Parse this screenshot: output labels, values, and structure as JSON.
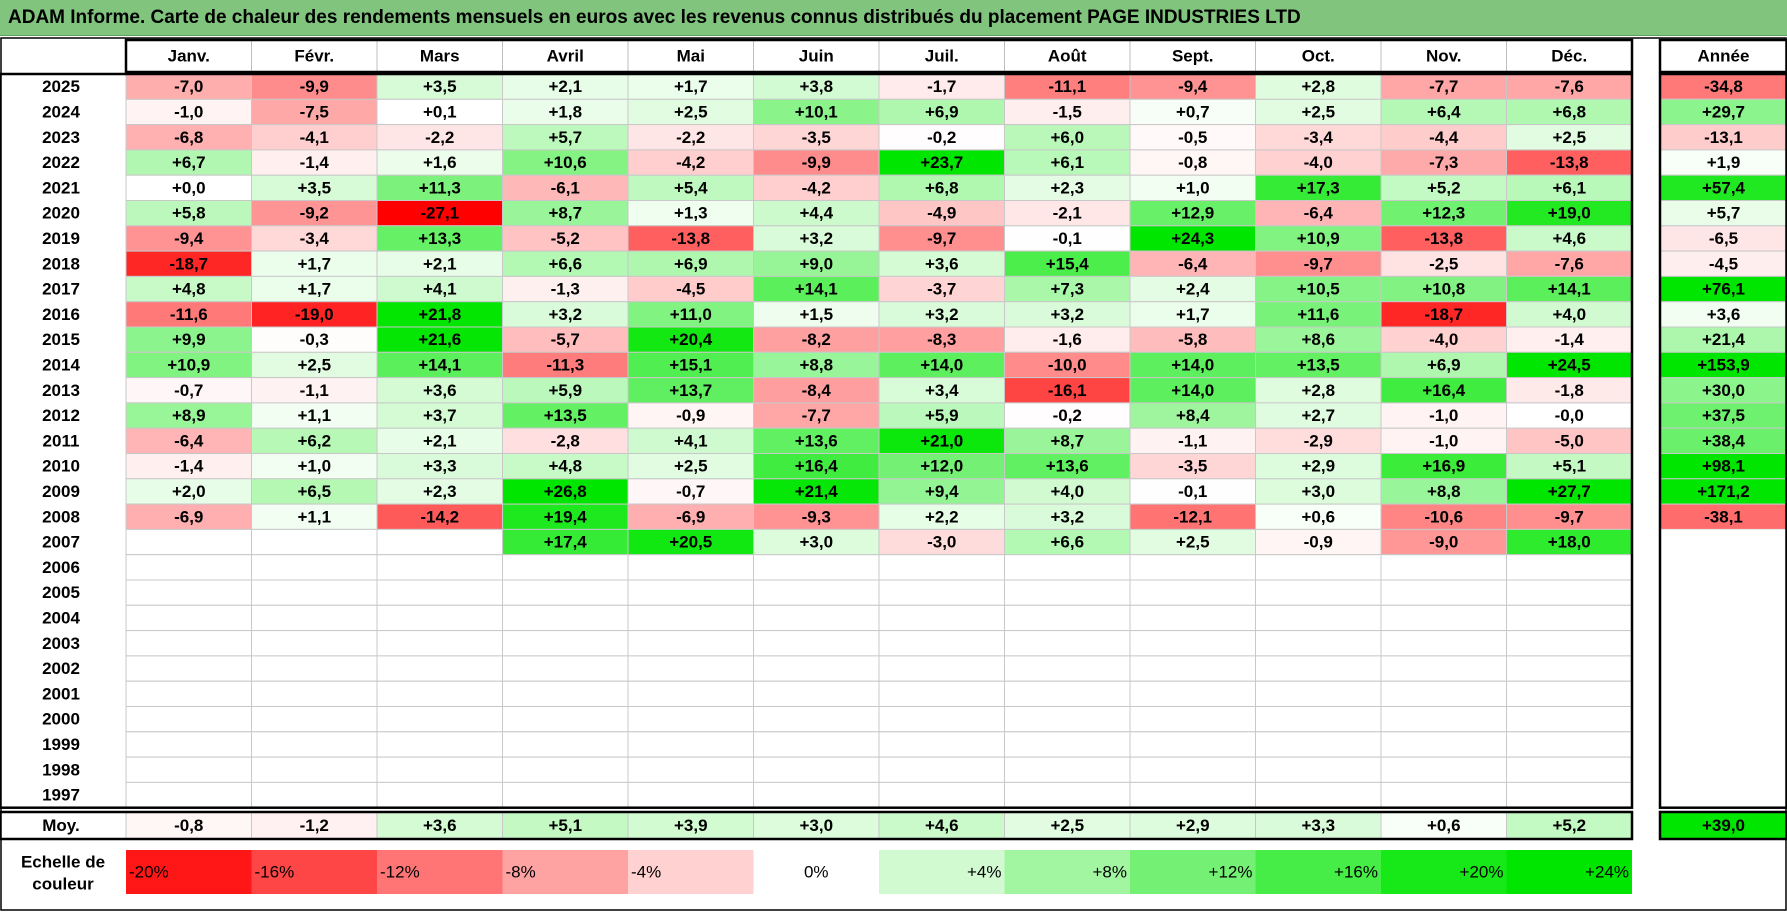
{
  "title": "ADAM Informe. Carte de chaleur des rendements mensuels en euros avec les revenus connus distribués du placement PAGE INDUSTRIES LTD",
  "colors": {
    "negative_max": "#ff0000",
    "neutral": "#ffffff",
    "positive_max": "#00e600",
    "title_bg": "#80c47d"
  },
  "chart_data": {
    "type": "heatmap",
    "title": "ADAM Informe. Carte de chaleur des rendements mensuels en euros avec les revenus connus distribués du placement PAGE INDUSTRIES LTD",
    "months": [
      "Janv.",
      "Févr.",
      "Mars",
      "Avril",
      "Mai",
      "Juin",
      "Juil.",
      "Août",
      "Sept.",
      "Oct.",
      "Nov.",
      "Déc."
    ],
    "year_header": "Année",
    "rows": [
      {
        "year": "2025",
        "m": [
          "-7,0",
          "-9,9",
          "+3,5",
          "+2,1",
          "+1,7",
          "+3,8",
          "-1,7",
          "-11,1",
          "-9,4",
          "+2,8",
          "-7,7",
          "-7,6"
        ],
        "y": "-34,8"
      },
      {
        "year": "2024",
        "m": [
          "-1,0",
          "-7,5",
          "+0,1",
          "+1,8",
          "+2,5",
          "+10,1",
          "+6,9",
          "-1,5",
          "+0,7",
          "+2,5",
          "+6,4",
          "+6,8"
        ],
        "y": "+29,7"
      },
      {
        "year": "2023",
        "m": [
          "-6,8",
          "-4,1",
          "-2,2",
          "+5,7",
          "-2,2",
          "-3,5",
          "-0,2",
          "+6,0",
          "-0,5",
          "-3,4",
          "-4,4",
          "+2,5"
        ],
        "y": "-13,1"
      },
      {
        "year": "2022",
        "m": [
          "+6,7",
          "-1,4",
          "+1,6",
          "+10,6",
          "-4,2",
          "-9,9",
          "+23,7",
          "+6,1",
          "-0,8",
          "-4,0",
          "-7,3",
          "-13,8"
        ],
        "y": "+1,9"
      },
      {
        "year": "2021",
        "m": [
          "+0,0",
          "+3,5",
          "+11,3",
          "-6,1",
          "+5,4",
          "-4,2",
          "+6,8",
          "+2,3",
          "+1,0",
          "+17,3",
          "+5,2",
          "+6,1"
        ],
        "y": "+57,4"
      },
      {
        "year": "2020",
        "m": [
          "+5,8",
          "-9,2",
          "-27,1",
          "+8,7",
          "+1,3",
          "+4,4",
          "-4,9",
          "-2,1",
          "+12,9",
          "-6,4",
          "+12,3",
          "+19,0"
        ],
        "y": "+5,7"
      },
      {
        "year": "2019",
        "m": [
          "-9,4",
          "-3,4",
          "+13,3",
          "-5,2",
          "-13,8",
          "+3,2",
          "-9,7",
          "-0,1",
          "+24,3",
          "+10,9",
          "-13,8",
          "+4,6"
        ],
        "y": "-6,5"
      },
      {
        "year": "2018",
        "m": [
          "-18,7",
          "+1,7",
          "+2,1",
          "+6,6",
          "+6,9",
          "+9,0",
          "+3,6",
          "+15,4",
          "-6,4",
          "-9,7",
          "-2,5",
          "-7,6"
        ],
        "y": "-4,5"
      },
      {
        "year": "2017",
        "m": [
          "+4,8",
          "+1,7",
          "+4,1",
          "-1,3",
          "-4,5",
          "+14,1",
          "-3,7",
          "+7,3",
          "+2,4",
          "+10,5",
          "+10,8",
          "+14,1"
        ],
        "y": "+76,1"
      },
      {
        "year": "2016",
        "m": [
          "-11,6",
          "-19,0",
          "+21,8",
          "+3,2",
          "+11,0",
          "+1,5",
          "+3,2",
          "+3,2",
          "+1,7",
          "+11,6",
          "-18,7",
          "+4,0"
        ],
        "y": "+3,6"
      },
      {
        "year": "2015",
        "m": [
          "+9,9",
          "-0,3",
          "+21,6",
          "-5,7",
          "+20,4",
          "-8,2",
          "-8,3",
          "-1,6",
          "-5,8",
          "+8,6",
          "-4,0",
          "-1,4"
        ],
        "y": "+21,4"
      },
      {
        "year": "2014",
        "m": [
          "+10,9",
          "+2,5",
          "+14,1",
          "-11,3",
          "+15,1",
          "+8,8",
          "+14,0",
          "-10,0",
          "+14,0",
          "+13,5",
          "+6,9",
          "+24,5"
        ],
        "y": "+153,9"
      },
      {
        "year": "2013",
        "m": [
          "-0,7",
          "-1,1",
          "+3,6",
          "+5,9",
          "+13,7",
          "-8,4",
          "+3,4",
          "-16,1",
          "+14,0",
          "+2,8",
          "+16,4",
          "-1,8"
        ],
        "y": "+30,0"
      },
      {
        "year": "2012",
        "m": [
          "+8,9",
          "+1,1",
          "+3,7",
          "+13,5",
          "-0,9",
          "-7,7",
          "+5,9",
          "-0,2",
          "+8,4",
          "+2,7",
          "-1,0",
          "-0,0"
        ],
        "y": "+37,5"
      },
      {
        "year": "2011",
        "m": [
          "-6,4",
          "+6,2",
          "+2,1",
          "-2,8",
          "+4,1",
          "+13,6",
          "+21,0",
          "+8,7",
          "-1,1",
          "-2,9",
          "-1,0",
          "-5,0"
        ],
        "y": "+38,4"
      },
      {
        "year": "2010",
        "m": [
          "-1,4",
          "+1,0",
          "+3,3",
          "+4,8",
          "+2,5",
          "+16,4",
          "+12,0",
          "+13,6",
          "-3,5",
          "+2,9",
          "+16,9",
          "+5,1"
        ],
        "y": "+98,1"
      },
      {
        "year": "2009",
        "m": [
          "+2,0",
          "+6,5",
          "+2,3",
          "+26,8",
          "-0,7",
          "+21,4",
          "+9,4",
          "+4,0",
          "-0,1",
          "+3,0",
          "+8,8",
          "+27,7"
        ],
        "y": "+171,2"
      },
      {
        "year": "2008",
        "m": [
          "-6,9",
          "+1,1",
          "-14,2",
          "+19,4",
          "-6,9",
          "-9,3",
          "+2,2",
          "+3,2",
          "-12,1",
          "+0,6",
          "-10,6",
          "-9,7"
        ],
        "y": "-38,1"
      },
      {
        "year": "2007",
        "m": [
          "",
          "",
          "",
          "+17,4",
          "+20,5",
          "+3,0",
          "-3,0",
          "+6,6",
          "+2,5",
          "-0,9",
          "-9,0",
          "+18,0"
        ],
        "y": ""
      },
      {
        "year": "2006",
        "m": [
          "",
          "",
          "",
          "",
          "",
          "",
          "",
          "",
          "",
          "",
          "",
          ""
        ],
        "y": ""
      },
      {
        "year": "2005",
        "m": [
          "",
          "",
          "",
          "",
          "",
          "",
          "",
          "",
          "",
          "",
          "",
          ""
        ],
        "y": ""
      },
      {
        "year": "2004",
        "m": [
          "",
          "",
          "",
          "",
          "",
          "",
          "",
          "",
          "",
          "",
          "",
          ""
        ],
        "y": ""
      },
      {
        "year": "2003",
        "m": [
          "",
          "",
          "",
          "",
          "",
          "",
          "",
          "",
          "",
          "",
          "",
          ""
        ],
        "y": ""
      },
      {
        "year": "2002",
        "m": [
          "",
          "",
          "",
          "",
          "",
          "",
          "",
          "",
          "",
          "",
          "",
          ""
        ],
        "y": ""
      },
      {
        "year": "2001",
        "m": [
          "",
          "",
          "",
          "",
          "",
          "",
          "",
          "",
          "",
          "",
          "",
          ""
        ],
        "y": ""
      },
      {
        "year": "2000",
        "m": [
          "",
          "",
          "",
          "",
          "",
          "",
          "",
          "",
          "",
          "",
          "",
          ""
        ],
        "y": ""
      },
      {
        "year": "1999",
        "m": [
          "",
          "",
          "",
          "",
          "",
          "",
          "",
          "",
          "",
          "",
          "",
          ""
        ],
        "y": ""
      },
      {
        "year": "1998",
        "m": [
          "",
          "",
          "",
          "",
          "",
          "",
          "",
          "",
          "",
          "",
          "",
          ""
        ],
        "y": ""
      },
      {
        "year": "1997",
        "m": [
          "",
          "",
          "",
          "",
          "",
          "",
          "",
          "",
          "",
          "",
          "",
          ""
        ],
        "y": ""
      }
    ],
    "average": {
      "label": "Moy.",
      "m": [
        "-0,8",
        "-1,2",
        "+3,6",
        "+5,1",
        "+3,9",
        "+3,0",
        "+4,6",
        "+2,5",
        "+2,9",
        "+3,3",
        "+0,6",
        "+5,2"
      ],
      "y": "+39,0"
    },
    "scale": {
      "label_line1": "Echelle de",
      "label_line2": "couleur",
      "steps": [
        {
          "label": "-20%",
          "value": -20
        },
        {
          "label": "-16%",
          "value": -16
        },
        {
          "label": "-12%",
          "value": -12
        },
        {
          "label": "-8%",
          "value": -8
        },
        {
          "label": "-4%",
          "value": -4
        },
        {
          "label": "0%",
          "value": 0
        },
        {
          "label": "+4%",
          "value": 4
        },
        {
          "label": "+8%",
          "value": 8
        },
        {
          "label": "+12%",
          "value": 12
        },
        {
          "label": "+16%",
          "value": 16
        },
        {
          "label": "+20%",
          "value": 20
        },
        {
          "label": "+24%",
          "value": 24
        }
      ]
    }
  }
}
